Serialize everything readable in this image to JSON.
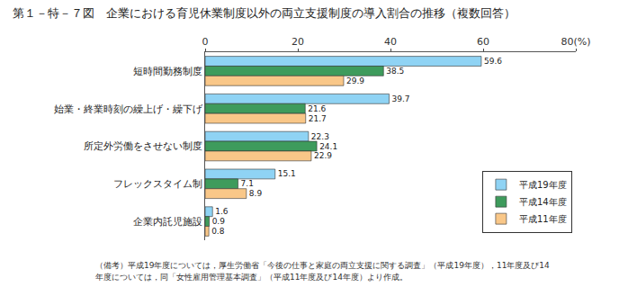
{
  "chart_data": {
    "type": "bar",
    "orientation": "horizontal",
    "title": "第１－特－７図　企業における育児休業制度以外の両立支援制度の導入割合の推移（複数回答）",
    "categories": [
      "短時間勤務制度",
      "始業・終業時刻の繰上げ・繰下げ",
      "所定外労働をさせない制度",
      "フレックスタイム制",
      "企業内託児施設"
    ],
    "series": [
      {
        "name": "平成19年度",
        "color": "#8fd3f4",
        "values": [
          59.6,
          39.7,
          22.3,
          15.1,
          1.6
        ]
      },
      {
        "name": "平成14年度",
        "color": "#3e9b5c",
        "values": [
          38.5,
          21.6,
          24.1,
          7.1,
          0.9
        ]
      },
      {
        "name": "平成11年度",
        "color": "#f9c788",
        "values": [
          29.9,
          21.7,
          22.9,
          8.9,
          0.8
        ]
      }
    ],
    "xlim": [
      0,
      80
    ],
    "xticks": [
      0,
      20,
      40,
      60,
      {
        "value": 80,
        "label": "80(%)"
      }
    ],
    "grid": false,
    "data_labels": true,
    "legend": "lower right",
    "annotations": [
      "（備考）平成19年度については，厚生労働省「今後の仕事と家庭の両立支援に関する調査」（平成19年度），11年度及び14",
      "年度については，同「女性雇用管理基本調査」（平成11年度及び14年度）より作成。"
    ]
  }
}
